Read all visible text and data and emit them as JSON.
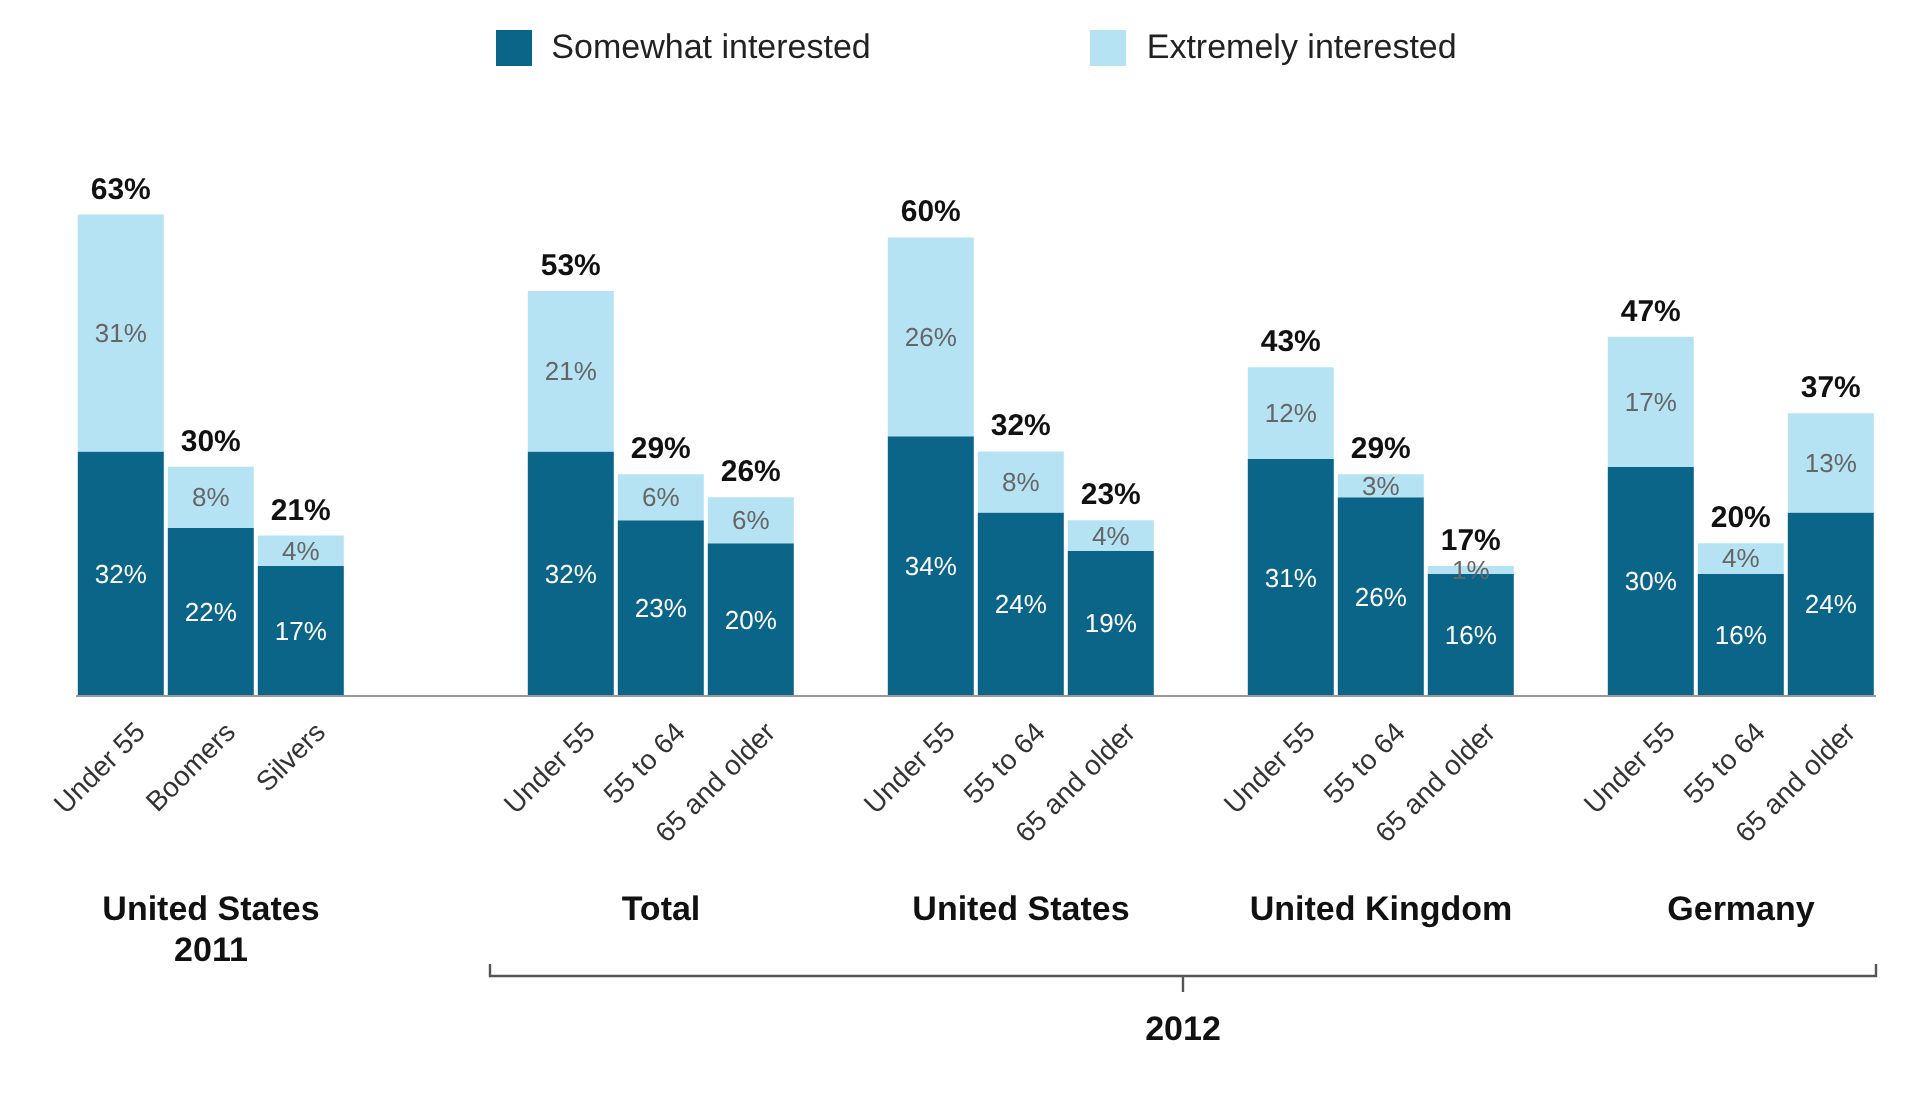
{
  "chart_data": {
    "type": "bar",
    "stacked": true,
    "legend": "top",
    "grid": false,
    "categories": [
      "Under 55",
      "Boomers",
      "Silvers",
      null,
      null,
      "Under 55",
      "55 to 64",
      "65 and older",
      null,
      "Under 55",
      "55 to 64",
      "65 and older",
      null,
      "Under 55",
      "55 to 64",
      "65 and older",
      null,
      "Under 55",
      "55 to 64",
      "65 and older"
    ],
    "series": [
      {
        "name": "Somewhat interested",
        "color": "#0b6589",
        "values": [
          32,
          22,
          17,
          null,
          null,
          32,
          23,
          20,
          null,
          34,
          24,
          19,
          null,
          31,
          26,
          16,
          null,
          30,
          16,
          24
        ],
        "value_labels": [
          "32%",
          "22%",
          "17%",
          null,
          null,
          "32%",
          "23%",
          "20%",
          null,
          "34%",
          "24%",
          "19%",
          null,
          "31%",
          "26%",
          "16%",
          null,
          "30%",
          "16%",
          "24%"
        ]
      },
      {
        "name": "Extremely interested",
        "color": "#b5e3f3",
        "values": [
          31,
          8,
          4,
          null,
          null,
          21,
          6,
          6,
          null,
          26,
          8,
          4,
          null,
          12,
          3,
          1,
          null,
          17,
          4,
          13
        ],
        "value_labels": [
          "31%",
          "8%",
          "4%",
          null,
          null,
          "21%",
          "6%",
          "6%",
          null,
          "26%",
          "8%",
          "4%",
          null,
          "12%",
          "3%",
          "1%",
          null,
          "17%",
          "4%",
          "13%"
        ]
      }
    ],
    "totals": [
      "63%",
      "30%",
      "21%",
      null,
      null,
      "53%",
      "29%",
      "26%",
      null,
      "60%",
      "32%",
      "23%",
      null,
      "43%",
      "29%",
      "17%",
      null,
      "47%",
      "20%",
      "37%"
    ],
    "annotations": [
      "United States\n2011",
      "Total",
      "United States",
      "United Kingdom",
      "Germany",
      "2012"
    ]
  }
}
